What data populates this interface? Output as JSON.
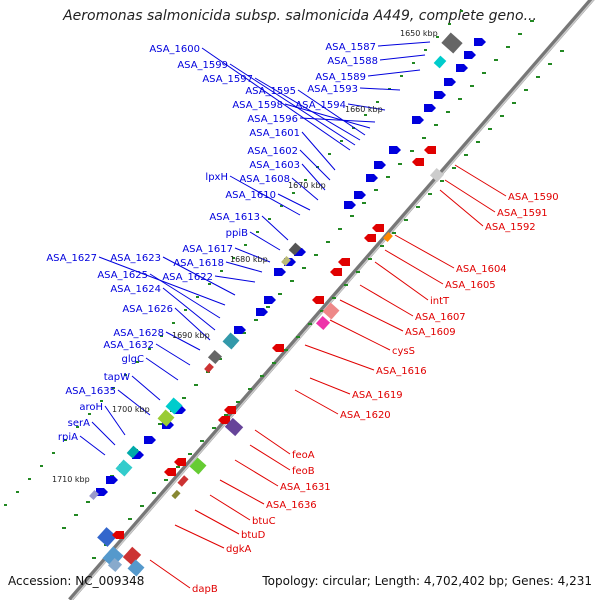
{
  "title": "Aeromonas salmonicida subsp. salmonicida A449, complete geno...",
  "footer": {
    "accession": "Accession: NC_009348",
    "summary": "Topology: circular; Length: 4,702,402 bp; Genes: 4,231"
  },
  "kbp_marks": [
    "1650 kbp",
    "1660 kbp",
    "1670 kbp",
    "1680 kbp",
    "1690 kbp",
    "1700 kbp",
    "1710 kbp"
  ],
  "genes_forward": [
    "ASA_1600",
    "ASA_1599",
    "ASA_1597",
    "ASA_1595",
    "ASA_1598",
    "ASA_1596",
    "ASA_1601",
    "ASA_1602",
    "ASA_1603",
    "ASA_1608",
    "lpxH",
    "ASA_1610",
    "ASA_1613",
    "ppiB",
    "ASA_1617",
    "ASA_1618",
    "ASA_1622",
    "ASA_1623",
    "ASA_1627",
    "ASA_1625",
    "ASA_1624",
    "ASA_1626",
    "ASA_1628",
    "ASA_1632",
    "glgC",
    "tapW",
    "ASA_1635",
    "aroH",
    "serA",
    "rpiA",
    "ASA_1587",
    "ASA_1588",
    "ASA_1589",
    "ASA_1593",
    "ASA_1594"
  ],
  "genes_reverse": [
    "ASA_1590",
    "ASA_1591",
    "ASA_1592",
    "ASA_1604",
    "ASA_1605",
    "intT",
    "ASA_1607",
    "ASA_1609",
    "cysS",
    "ASA_1616",
    "ASA_1619",
    "ASA_1620",
    "feoA",
    "feoB",
    "ASA_1631",
    "ASA_1636",
    "btuC",
    "btuD",
    "dgkA",
    "dapB"
  ],
  "colors": {
    "forward": "#0000dd",
    "reverse": "#e00000",
    "backbone": "#999999"
  }
}
